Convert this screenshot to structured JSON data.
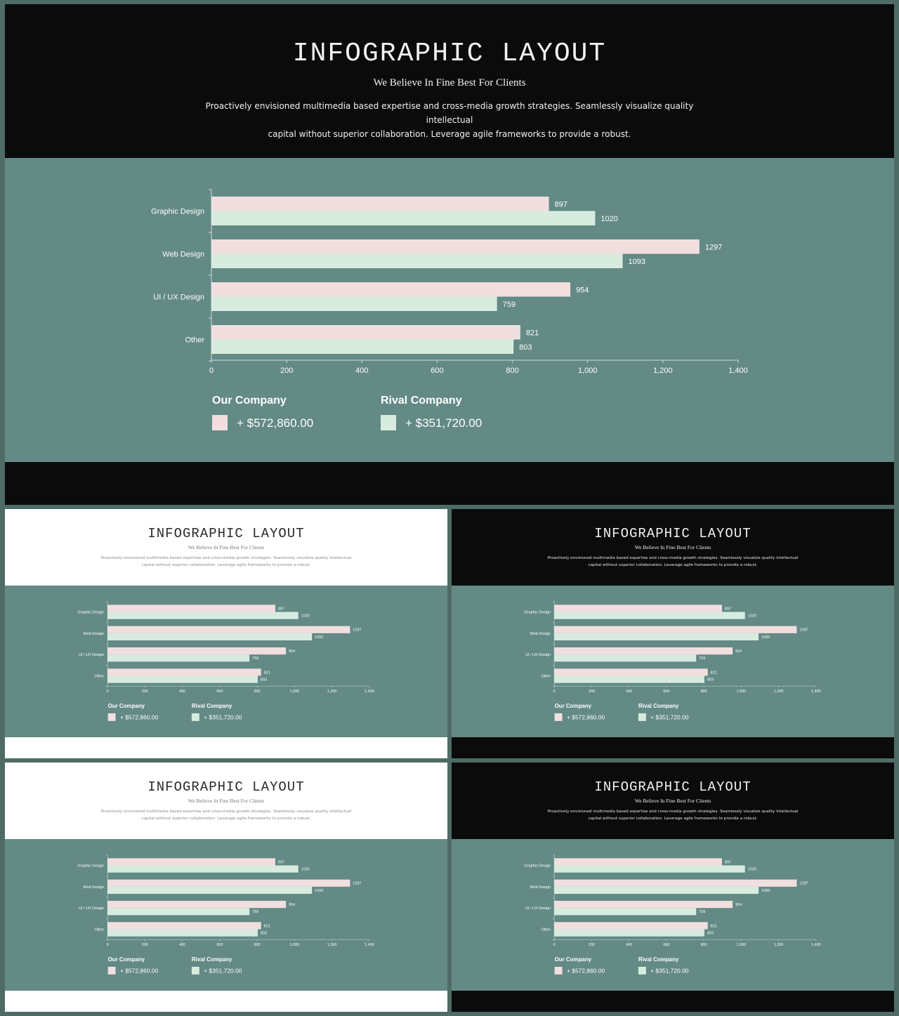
{
  "header": {
    "title": "INFOGRAPHIC LAYOUT",
    "subtitle": "We Believe In Fine Best For Clients",
    "description_line1": "Proactively envisioned multimedia based expertise and cross-media growth strategies. Seamlessly visualize quality intellectual",
    "description_line2": "capital without superior collaboration. Leverage agile frameworks to provide a robust."
  },
  "colors": {
    "background": "#4f6b66",
    "teal_panel": "#638a85",
    "dark": "#0b0b0b",
    "our_company": "#f1dfe0",
    "rival_company": "#d7ecdf"
  },
  "legend": {
    "our_company": {
      "label": "Our Company",
      "value": "+ $572,860.00"
    },
    "rival_company": {
      "label": "Rival Company",
      "value": "+ $351,720.00"
    }
  },
  "chart_data": {
    "type": "bar",
    "orientation": "horizontal",
    "categories": [
      "Graphic Design",
      "Web Design",
      "UI / UX Design",
      "Other"
    ],
    "series": [
      {
        "name": "Our Company",
        "values": [
          897,
          1297,
          954,
          821
        ]
      },
      {
        "name": "Rival Company",
        "values": [
          1020,
          1093,
          759,
          803
        ]
      }
    ],
    "xlim": [
      0,
      1400
    ],
    "xticks": [
      "0",
      "200",
      "400",
      "600",
      "800",
      "1,000",
      "1,200",
      "1,400"
    ],
    "legend_position": "bottom-left",
    "grid": false
  }
}
